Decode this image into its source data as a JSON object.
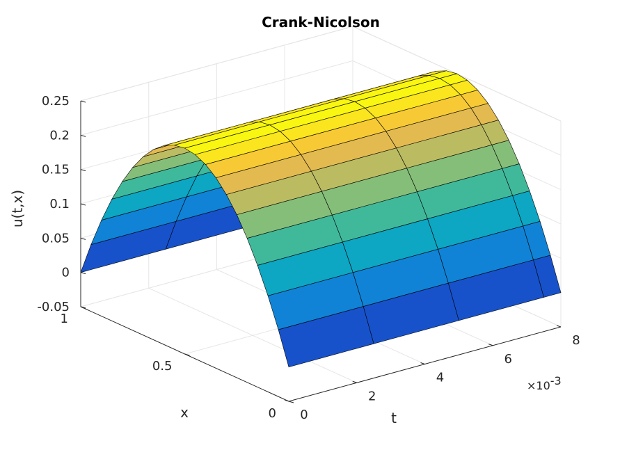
{
  "chart_data": {
    "type": "surface",
    "title": "Crank-Nicolson",
    "xlabel": "t",
    "ylabel": "x",
    "zlabel": "u(t,x)",
    "t_multiplier_label": "×10",
    "t_multiplier_exponent": "-3",
    "t_range": [
      0,
      0.008
    ],
    "x_range": [
      0,
      1
    ],
    "z_range": [
      -0.05,
      0.25
    ],
    "t_ticks": [
      0,
      2,
      4,
      6,
      8
    ],
    "t_tick_labels": [
      "0",
      "2",
      "4",
      "6",
      "8"
    ],
    "x_ticks": [
      0,
      0.5,
      1
    ],
    "x_tick_labels": [
      "0",
      "0.5",
      "1"
    ],
    "z_ticks": [
      -0.05,
      0,
      0.05,
      0.1,
      0.15,
      0.2,
      0.25
    ],
    "z_tick_labels": [
      "-0.05",
      "0",
      "0.05",
      "0.1",
      "0.15",
      "0.2",
      "0.25"
    ],
    "t_grid": [
      0,
      0.0025,
      0.005,
      0.0075
    ],
    "x_grid_points": 21,
    "function": "u(t,x) = x(1-x), nearly constant in t",
    "peak_value": 0.25,
    "grid": true,
    "colormap": "parula"
  }
}
